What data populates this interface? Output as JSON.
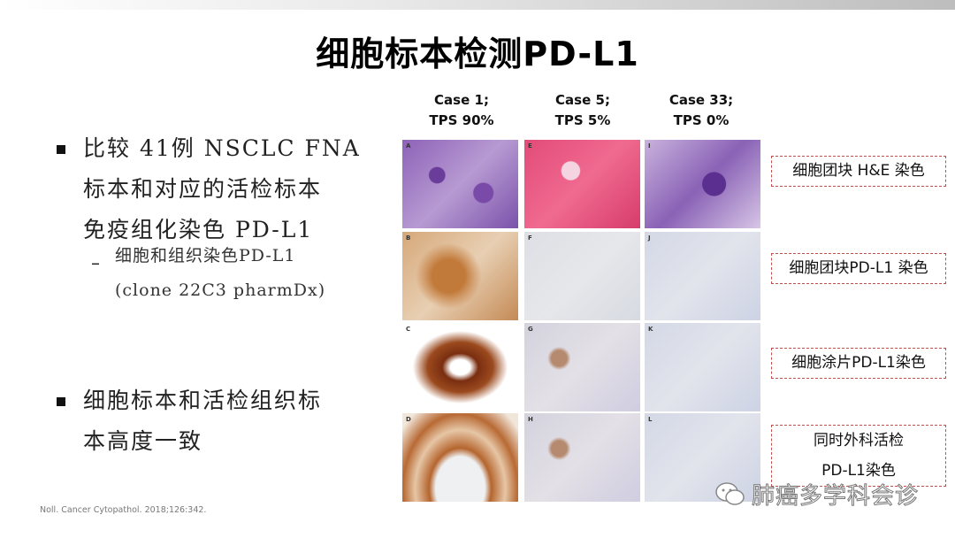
{
  "title": "细胞标本检测PD-L1",
  "bullets": [
    {
      "text": "比较 41例 NSCLC FNA\n标本和对应的活检标本\n免疫组化染色 PD-L1"
    },
    {
      "text": "细胞标本和活检组织标\n本高度一致"
    }
  ],
  "sub_bullet": {
    "dash": "–",
    "text": "细胞和组织染色PD-L1\n(clone 22C3 pharmDx)"
  },
  "citation": "Noll. Cancer Cytopathol. 2018;126:342.",
  "figure": {
    "columns": [
      {
        "line1": "Case 1;",
        "line2": "TPS 90%"
      },
      {
        "line1": "Case 5;",
        "line2": "TPS 5%"
      },
      {
        "line1": "Case 33;",
        "line2": "TPS 0%"
      }
    ],
    "panel_letters": [
      "A",
      "E",
      "I",
      "B",
      "F",
      "J",
      "C",
      "G",
      "K",
      "D",
      "H",
      "L"
    ],
    "row_labels": [
      "细胞团块 H&E 染色",
      "细胞团块PD-L1 染色",
      "细胞涂片PD-L1染色",
      "同时外科活检",
      "PD-L1染色"
    ],
    "label_border_color": "#c0504d"
  },
  "watermark": {
    "icon": "wechat-icon",
    "text": "肺癌多学科会诊"
  }
}
